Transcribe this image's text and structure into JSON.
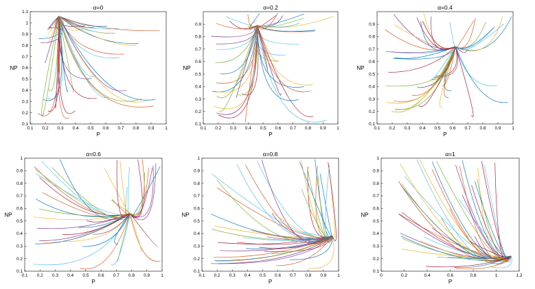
{
  "chart_data": [
    {
      "type": "line",
      "title": "α=0",
      "xlabel": "P",
      "ylabel": "NP",
      "xlim": [
        0.1,
        1
      ],
      "ylim": [
        0.1,
        1.1
      ],
      "xticks": [
        "0.1",
        "0.2",
        "0.3",
        "0.4",
        "0.5",
        "0.6",
        "0.7",
        "0.8",
        "0.9",
        "1"
      ],
      "yticks": [
        "0.1",
        "0.2",
        "0.3",
        "0.4",
        "0.5",
        "0.6",
        "0.7",
        "0.8",
        "0.9",
        "1",
        "1.1"
      ],
      "equilibrium": [
        0.29,
        1.06
      ],
      "grid": false
    },
    {
      "type": "line",
      "title": "α=0.2",
      "xlabel": "P",
      "ylabel": "NP",
      "xlim": [
        0.1,
        1
      ],
      "ylim": [
        0.1,
        1
      ],
      "xticks": [
        "0.1",
        "0.2",
        "0.3",
        "0.4",
        "0.5",
        "0.6",
        "0.7",
        "0.8",
        "0.9",
        "1"
      ],
      "yticks": [
        "0.1",
        "0.2",
        "0.3",
        "0.4",
        "0.5",
        "0.6",
        "0.7",
        "0.8",
        "0.9"
      ],
      "equilibrium": [
        0.46,
        0.89
      ],
      "grid": false
    },
    {
      "type": "line",
      "title": "α=0.4",
      "xlabel": "P",
      "ylabel": "NP",
      "xlim": [
        0.1,
        1
      ],
      "ylim": [
        0.1,
        1
      ],
      "xticks": [
        "0.1",
        "0.2",
        "0.3",
        "0.4",
        "0.5",
        "0.6",
        "0.7",
        "0.8",
        "0.9",
        "1"
      ],
      "yticks": [
        "0.1",
        "0.2",
        "0.3",
        "0.4",
        "0.5",
        "0.6",
        "0.7",
        "0.8",
        "0.9"
      ],
      "equilibrium": [
        0.62,
        0.72
      ],
      "grid": false
    },
    {
      "type": "line",
      "title": "α=0.6",
      "xlabel": "P",
      "ylabel": "NP",
      "xlim": [
        0.1,
        1
      ],
      "ylim": [
        0.1,
        1
      ],
      "xticks": [
        "0.1",
        "0.2",
        "0.3",
        "0.4",
        "0.5",
        "0.6",
        "0.7",
        "0.8",
        "0.9",
        "1"
      ],
      "yticks": [
        "0.1",
        "0.2",
        "0.3",
        "0.4",
        "0.5",
        "0.6",
        "0.7",
        "0.8",
        "0.9",
        "1"
      ],
      "equilibrium": [
        0.79,
        0.56
      ],
      "grid": false
    },
    {
      "type": "line",
      "title": "α=0.8",
      "xlabel": "P",
      "ylabel": "NP",
      "xlim": [
        0.1,
        1
      ],
      "ylim": [
        0.1,
        1
      ],
      "xticks": [
        "0.1",
        "0.2",
        "0.3",
        "0.4",
        "0.5",
        "0.6",
        "0.7",
        "0.8",
        "0.9",
        "1"
      ],
      "yticks": [
        "0.1",
        "0.2",
        "0.3",
        "0.4",
        "0.5",
        "0.6",
        "0.7",
        "0.8",
        "0.9",
        "1"
      ],
      "equilibrium": [
        0.96,
        0.38
      ],
      "grid": false
    },
    {
      "type": "line",
      "title": "α=1",
      "xlabel": "P",
      "ylabel": "NP",
      "xlim": [
        0,
        1.2
      ],
      "ylim": [
        0.1,
        1
      ],
      "xticks": [
        "0",
        "0.2",
        "0.4",
        "0.6",
        "0.8",
        "1",
        "1.2"
      ],
      "yticks": [
        "0.1",
        "0.2",
        "0.3",
        "0.4",
        "0.5",
        "0.6",
        "0.7",
        "0.8",
        "0.9",
        "1"
      ],
      "equilibrium": [
        1.13,
        0.22
      ],
      "grid": false
    }
  ],
  "palette": [
    "#0072bd",
    "#d95319",
    "#edb120",
    "#7e2f8e",
    "#77ac30",
    "#4dbeee",
    "#a2142f"
  ]
}
